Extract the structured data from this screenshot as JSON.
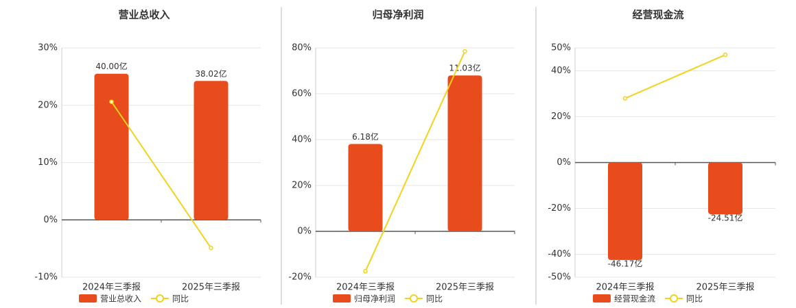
{
  "chart_data": [
    {
      "type": "bar",
      "title": "营业总收入",
      "categories": [
        "2024年三季报",
        "2025年三季报"
      ],
      "series": [
        {
          "name": "营业总收入",
          "type": "bar",
          "color": "#e84c1c",
          "values": [
            40.0,
            38.02
          ],
          "value_labels": [
            "40.00亿",
            "38.02亿"
          ]
        },
        {
          "name": "同比",
          "type": "line",
          "color": "#f2d21a",
          "values": [
            20.6,
            -4.9
          ]
        }
      ],
      "ylim": [
        -10,
        30
      ],
      "yticks": [
        {
          "value": -10,
          "label": "-10%"
        },
        {
          "value": 0,
          "label": "0%"
        },
        {
          "value": 10,
          "label": "10%"
        },
        {
          "value": 20,
          "label": "20%"
        },
        {
          "value": 30,
          "label": "30%"
        }
      ],
      "grid": true
    },
    {
      "type": "bar",
      "title": "归母净利润",
      "categories": [
        "2024年三季报",
        "2025年三季报"
      ],
      "series": [
        {
          "name": "归母净利润",
          "type": "bar",
          "color": "#e84c1c",
          "values": [
            6.18,
            11.03
          ],
          "value_labels": [
            "6.18亿",
            "11.03亿"
          ]
        },
        {
          "name": "同比",
          "type": "line",
          "color": "#f2d21a",
          "values": [
            -17.4,
            78.5
          ]
        }
      ],
      "ylim": [
        -20,
        80
      ],
      "yticks": [
        {
          "value": -20,
          "label": "-20%"
        },
        {
          "value": 0,
          "label": "0%"
        },
        {
          "value": 20,
          "label": "20%"
        },
        {
          "value": 40,
          "label": "40%"
        },
        {
          "value": 60,
          "label": "60%"
        },
        {
          "value": 80,
          "label": "80%"
        }
      ],
      "grid": true
    },
    {
      "type": "bar",
      "title": "经营现金流",
      "categories": [
        "2024年三季报",
        "2025年三季报"
      ],
      "series": [
        {
          "name": "经营现金流",
          "type": "bar",
          "color": "#e84c1c",
          "values": [
            -46.17,
            -24.51
          ],
          "value_labels": [
            "-46.17亿",
            "-24.51亿"
          ]
        },
        {
          "name": "同比",
          "type": "line",
          "color": "#f2d21a",
          "values": [
            28,
            47
          ]
        }
      ],
      "ylim": [
        -50,
        50
      ],
      "yticks": [
        {
          "value": -50,
          "label": "-50%"
        },
        {
          "value": -40,
          "label": "-40%"
        },
        {
          "value": -20,
          "label": "-20%"
        },
        {
          "value": 0,
          "label": "0%"
        },
        {
          "value": 20,
          "label": "20%"
        },
        {
          "value": 40,
          "label": "40%"
        },
        {
          "value": 50,
          "label": "50%"
        }
      ],
      "grid": true
    }
  ]
}
